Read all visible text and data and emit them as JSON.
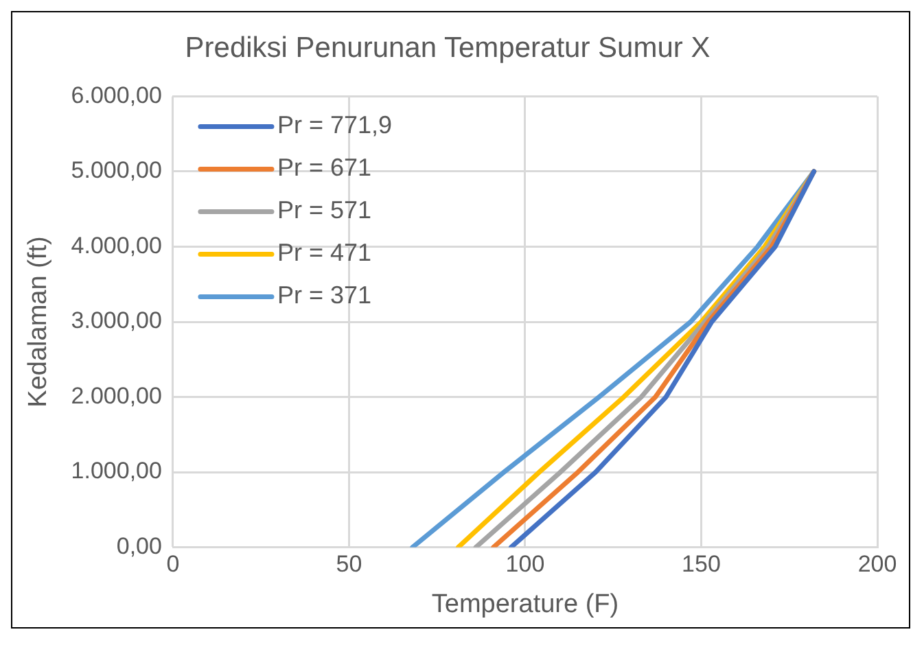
{
  "chart_data": {
    "type": "line",
    "title": "Prediksi Penurunan Temperatur Sumur X",
    "xlabel": "Temperature (F)",
    "ylabel": "Kedalaman (ft)",
    "series": [
      {
        "name": "Pr = 771,9",
        "color": "#4472c4",
        "x": [
          96,
          120,
          140,
          153,
          171,
          182
        ],
        "values": [
          0,
          1000,
          2000,
          3000,
          4000,
          5000
        ]
      },
      {
        "name": "Pr = 671",
        "color": "#ed7d31",
        "x": [
          91,
          115,
          137,
          152,
          170,
          182
        ],
        "values": [
          0,
          1000,
          2000,
          3000,
          4000,
          5000
        ]
      },
      {
        "name": "Pr = 571",
        "color": "#a5a5a5",
        "x": [
          86,
          110,
          133,
          151,
          169,
          182
        ],
        "values": [
          0,
          1000,
          2000,
          3000,
          4000,
          5000
        ]
      },
      {
        "name": "Pr = 471",
        "color": "#ffc000",
        "x": [
          81,
          104,
          128,
          150,
          168,
          182
        ],
        "values": [
          0,
          1000,
          2000,
          3000,
          4000,
          5000
        ]
      },
      {
        "name": "Pr = 371",
        "color": "#5b9bd5",
        "x": [
          68,
          94,
          121,
          147,
          166,
          182
        ],
        "values": [
          0,
          1000,
          2000,
          3000,
          4000,
          5000
        ]
      }
    ],
    "xlim": [
      0,
      200
    ],
    "xticks": [
      0,
      50,
      100,
      150,
      200
    ],
    "ylim": [
      0,
      6000
    ],
    "yticks": [
      {
        "value": 0,
        "label": "0,00"
      },
      {
        "value": 1000,
        "label": "1.000,00"
      },
      {
        "value": 2000,
        "label": "2.000,00"
      },
      {
        "value": 3000,
        "label": "3.000,00"
      },
      {
        "value": 4000,
        "label": "4.000,00"
      },
      {
        "value": 5000,
        "label": "5.000,00"
      },
      {
        "value": 6000,
        "label": "6.000,00"
      }
    ],
    "grid": true,
    "legend": "top left",
    "marker": "none",
    "line_style": "solid"
  }
}
